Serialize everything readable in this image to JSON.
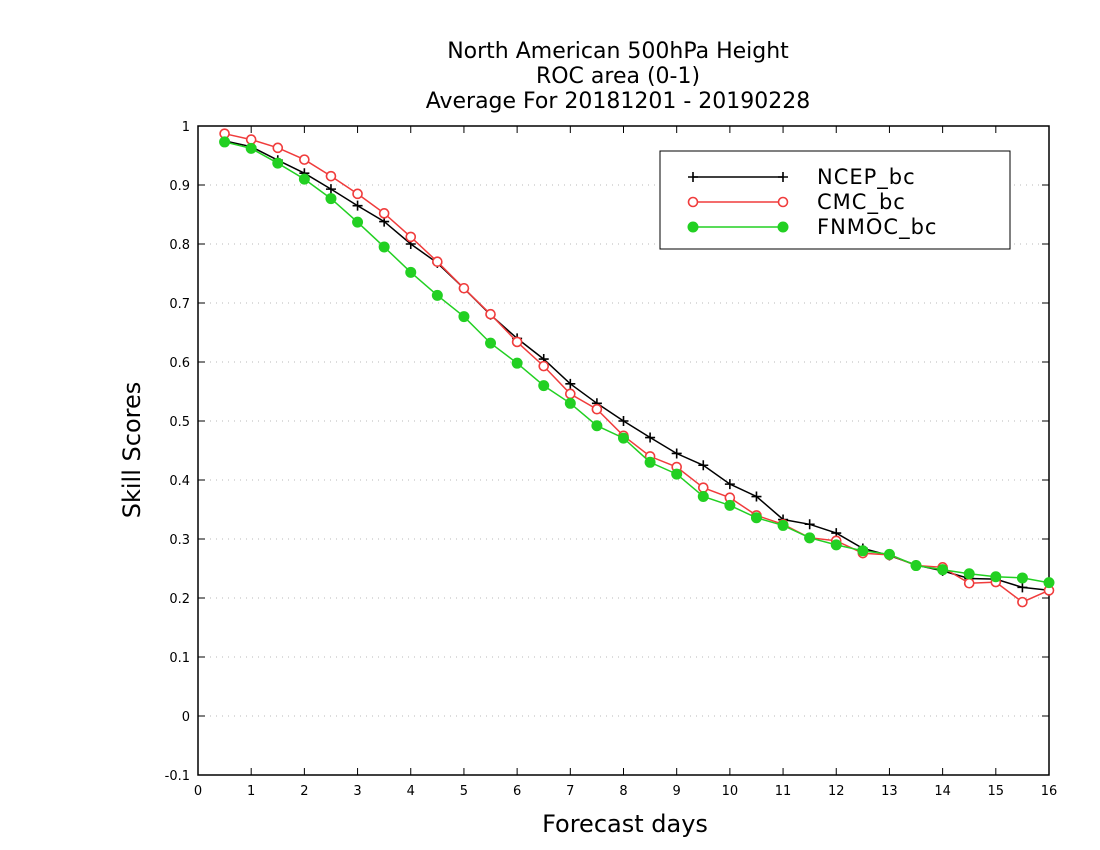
{
  "chart_data": {
    "type": "line",
    "title": [
      "North American 500hPa Height",
      "ROC area (0-1)",
      "Average For 20181201 - 20190228"
    ],
    "xlabel": "Forecast days",
    "ylabel": "Skill Scores",
    "xlim": [
      0,
      16
    ],
    "ylim": [
      -0.1,
      1
    ],
    "xticks": [
      0,
      1,
      2,
      3,
      4,
      5,
      6,
      7,
      8,
      9,
      10,
      11,
      12,
      13,
      14,
      15,
      16
    ],
    "yticks": [
      -0.1,
      0,
      0.1,
      0.2,
      0.3,
      0.4,
      0.5,
      0.6,
      0.7,
      0.8,
      0.9,
      1
    ],
    "ytick_labels": [
      "-0.1",
      "0",
      "0.1",
      "0.2",
      "0.3",
      "0.4",
      "0.5",
      "0.6",
      "0.7",
      "0.8",
      "0.9",
      "1"
    ],
    "grid": true,
    "legend": "top-right",
    "x": [
      0.5,
      1,
      1.5,
      2,
      2.5,
      3,
      3.5,
      4,
      4.5,
      5,
      5.5,
      6,
      6.5,
      7,
      7.5,
      8,
      8.5,
      9,
      9.5,
      10,
      10.5,
      11,
      11.5,
      12,
      12.5,
      13,
      13.5,
      14,
      14.5,
      15,
      15.5,
      16
    ],
    "series": [
      {
        "name": "NCEP_bc",
        "color": "#000000",
        "marker": "plus",
        "values": [
          0.975,
          0.965,
          0.942,
          0.92,
          0.893,
          0.865,
          0.838,
          0.8,
          0.768,
          0.725,
          0.68,
          0.64,
          0.605,
          0.563,
          0.53,
          0.5,
          0.472,
          0.445,
          0.425,
          0.393,
          0.372,
          0.333,
          0.325,
          0.31,
          0.284,
          0.272,
          0.256,
          0.246,
          0.233,
          0.232,
          0.218,
          0.213
        ]
      },
      {
        "name": "CMC_bc",
        "color": "#f03c3c",
        "marker": "open-circle",
        "values": [
          0.987,
          0.977,
          0.963,
          0.943,
          0.915,
          0.885,
          0.852,
          0.812,
          0.77,
          0.725,
          0.681,
          0.634,
          0.593,
          0.546,
          0.52,
          0.475,
          0.44,
          0.422,
          0.387,
          0.37,
          0.34,
          0.325,
          0.302,
          0.297,
          0.276,
          0.273,
          0.255,
          0.252,
          0.225,
          0.227,
          0.193,
          0.213
        ]
      },
      {
        "name": "FNMOC_bc",
        "color": "#22d022",
        "marker": "filled-circle",
        "values": [
          0.973,
          0.962,
          0.937,
          0.91,
          0.877,
          0.837,
          0.795,
          0.752,
          0.713,
          0.677,
          0.632,
          0.598,
          0.56,
          0.53,
          0.492,
          0.471,
          0.43,
          0.41,
          0.372,
          0.357,
          0.336,
          0.323,
          0.302,
          0.29,
          0.28,
          0.274,
          0.255,
          0.248,
          0.241,
          0.236,
          0.234,
          0.226
        ]
      }
    ]
  }
}
